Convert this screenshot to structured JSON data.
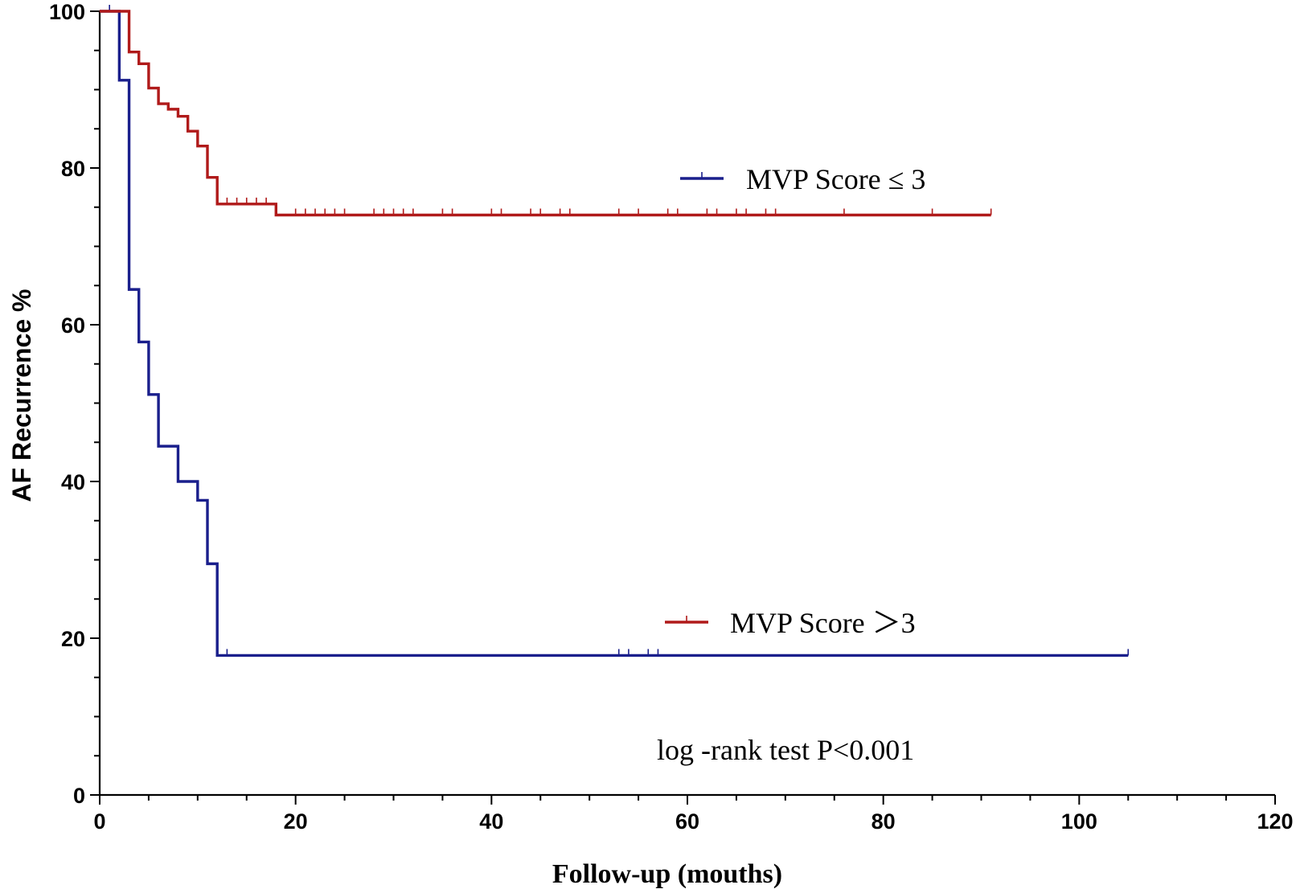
{
  "chart_data": {
    "type": "line",
    "subtype": "kaplan-meier step",
    "title": "",
    "xlabel": "Follow-up (mouths)",
    "ylabel": "AF Recurrence %",
    "xlim": [
      0,
      120
    ],
    "ylim": [
      0,
      100
    ],
    "x_ticks": [
      "0",
      "20",
      "40",
      "60",
      "80",
      "100",
      "120"
    ],
    "y_ticks": [
      "0",
      "20",
      "40",
      "60",
      "80",
      "100"
    ],
    "grid": false,
    "legend_position": "right",
    "legend": [
      {
        "label": "MVP  Score ≤ 3",
        "color": "#1a1f8c",
        "series": 0
      },
      {
        "label": "MVP  Score ＞3",
        "color": "#b01a1a",
        "series": 1
      }
    ],
    "annotation": "log -rank test  P<0.001",
    "series": [
      {
        "color": "#1a1f8c",
        "steps": [
          [
            0,
            100
          ],
          [
            2,
            91.2
          ],
          [
            3,
            64.5
          ],
          [
            4,
            57.8
          ],
          [
            5,
            51.1
          ],
          [
            6,
            44.5
          ],
          [
            8,
            40
          ],
          [
            10,
            37.6
          ],
          [
            11,
            29.5
          ],
          [
            12,
            17.8
          ]
        ],
        "end_x": 105,
        "censored": [
          1,
          2,
          13,
          53,
          54,
          56,
          57,
          105
        ]
      },
      {
        "color": "#b01a1a",
        "steps": [
          [
            0,
            100
          ],
          [
            3,
            94.8
          ],
          [
            4,
            93.3
          ],
          [
            5,
            90.2
          ],
          [
            6,
            88.2
          ],
          [
            7,
            87.5
          ],
          [
            8,
            86.6
          ],
          [
            9,
            84.7
          ],
          [
            10,
            82.8
          ],
          [
            11,
            78.8
          ],
          [
            12,
            75.4
          ],
          [
            18,
            74
          ]
        ],
        "end_x": 91,
        "censored": [
          13,
          14,
          15,
          16,
          17,
          18,
          20,
          21,
          22,
          23,
          24,
          25,
          28,
          29,
          30,
          31,
          32,
          35,
          36,
          40,
          41,
          44,
          45,
          47,
          48,
          53,
          55,
          58,
          59,
          62,
          63,
          65,
          66,
          68,
          69,
          76,
          85,
          91
        ]
      }
    ]
  }
}
